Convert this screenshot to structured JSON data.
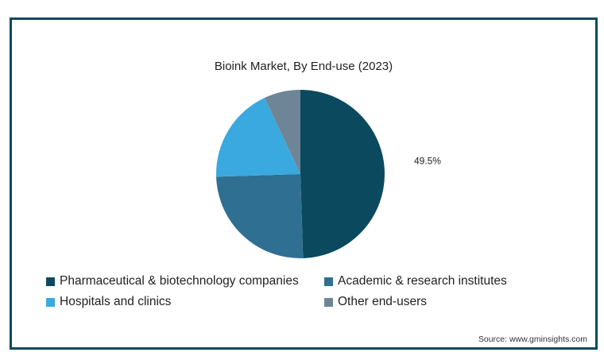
{
  "chart_data": {
    "type": "pie",
    "title": "Bioink Market, By End-use (2023)",
    "slices": [
      {
        "name": "Pharmaceutical & biotechnology companies",
        "value": 49.5,
        "color": "#0b4a5e",
        "label": "49.5%"
      },
      {
        "name": "Academic & research institutes",
        "value": 25.0,
        "color": "#2f6f91",
        "label": ""
      },
      {
        "name": "Hospitals and clinics",
        "value": 18.5,
        "color": "#3aa9df",
        "label": ""
      },
      {
        "name": "Other end-users",
        "value": 7.0,
        "color": "#6e8597",
        "label": ""
      }
    ],
    "legend_position": "bottom"
  },
  "source": "Source: www.gminsights.com"
}
